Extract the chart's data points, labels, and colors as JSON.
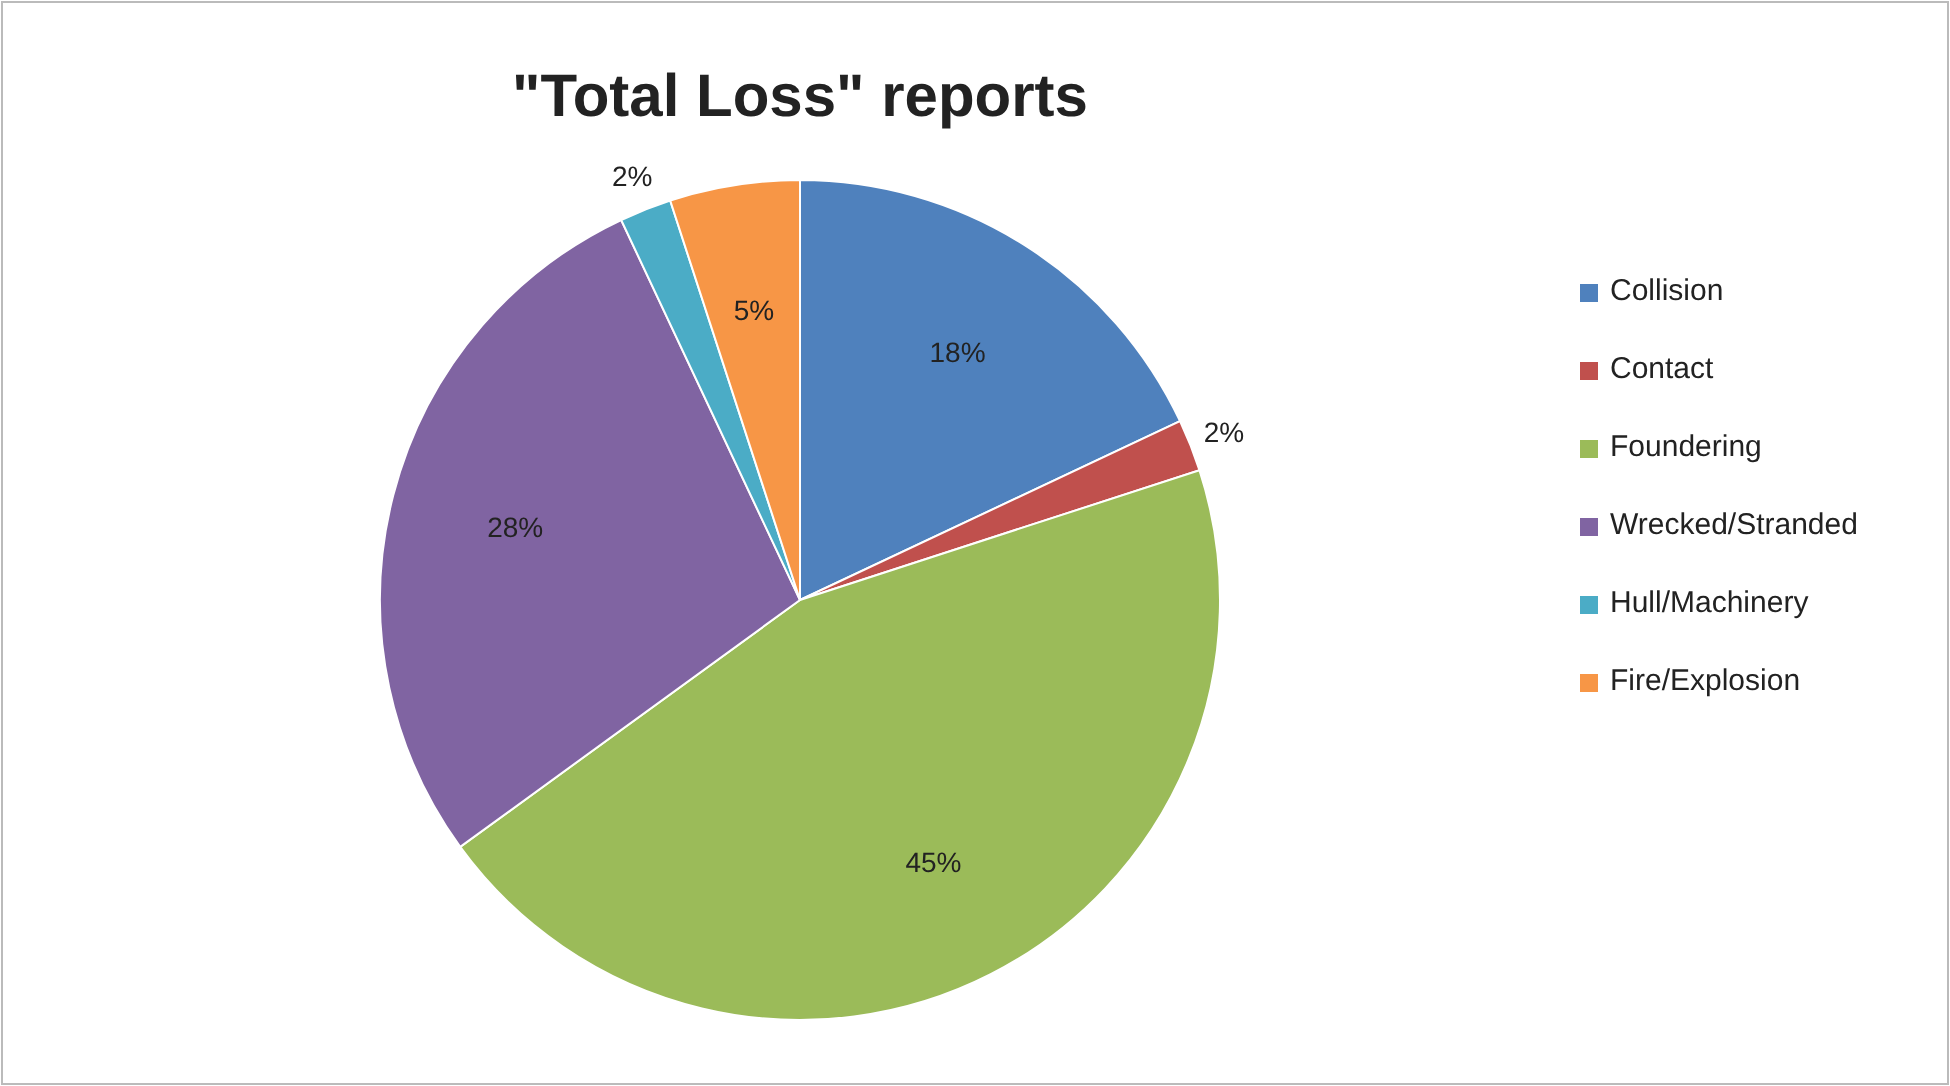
{
  "chart_data": {
    "type": "pie",
    "title": "\"Total Loss\" reports",
    "categories": [
      "Collision",
      "Contact",
      "Foundering",
      "Wrecked/Stranded",
      "Hull/Machinery",
      "Fire/Explosion"
    ],
    "values": [
      18,
      2,
      45,
      28,
      2,
      5
    ],
    "value_labels": [
      "18%",
      "2%",
      "45%",
      "28%",
      "2%",
      "5%"
    ],
    "colors": [
      "#4f81bd",
      "#c0504d",
      "#9bbb59",
      "#8064a2",
      "#4bacc6",
      "#f79646"
    ],
    "legend": "right"
  }
}
